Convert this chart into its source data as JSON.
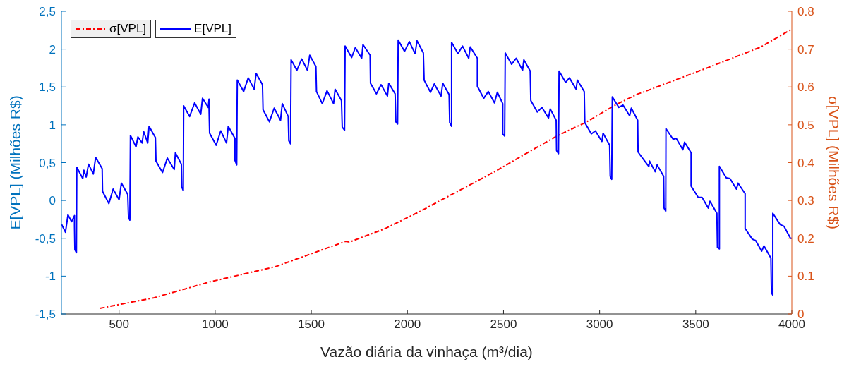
{
  "chart_data": {
    "type": "line",
    "xlabel": "Vazão diária da vinhaça (m³/dia)",
    "ylabel": "E[VPL] (Milhões R$)",
    "y2label": "σ[VPL] (Milhões R$)",
    "xlim": [
      200,
      4000
    ],
    "xticks": [
      500,
      1000,
      1500,
      2000,
      2500,
      3000,
      3500,
      4000
    ],
    "ylim": [
      -1.5,
      2.5
    ],
    "yticks": [
      {
        "value": -1.5,
        "label": "-1,5"
      },
      -1,
      {
        "value": -0.5,
        "label": "-0,5"
      },
      0,
      {
        "value": 0.5,
        "label": "0,5"
      },
      1,
      {
        "value": 1.5,
        "label": "1,5"
      },
      2,
      {
        "value": 2.5,
        "label": "2,5"
      }
    ],
    "y2lim": [
      0,
      0.8
    ],
    "y2ticks": [
      0,
      0.1,
      0.2,
      0.3,
      0.4,
      0.5,
      0.6,
      0.7,
      0.8
    ],
    "legend": "top left",
    "series": [
      {
        "name": "σ[VPL]",
        "color": "#ff0000",
        "axis": "y2",
        "line_style": "dashed",
        "x": [
          400,
          683,
          946,
          965,
          1313,
          1679,
          1698,
          1881,
          2065,
          2468,
          2596,
          2780,
          2926,
          3084,
          3201,
          3220,
          3568,
          3836,
          3997
        ],
        "values": [
          0.015,
          0.043,
          0.081,
          0.084,
          0.125,
          0.192,
          0.19,
          0.225,
          0.271,
          0.38,
          0.418,
          0.471,
          0.506,
          0.553,
          0.582,
          0.585,
          0.652,
          0.705,
          0.752
        ]
      },
      {
        "name": "E[VPL]",
        "color": "#0000ff",
        "line_style": "solid",
        "x": [
          200,
          221,
          234,
          253,
          268,
          268,
          270,
          278,
          280,
          311,
          317,
          329,
          341,
          366,
          378,
          412,
          414,
          447,
          469,
          500,
          512,
          545,
          549,
          556,
          559,
          588,
          598,
          620,
          628,
          649,
          656,
          689,
          692,
          726,
          751,
          787,
          793,
          824,
          826,
          834,
          836,
          867,
          893,
          925,
          934,
          964,
          968,
          968,
          971,
          1005,
          1029,
          1059,
          1068,
          1103,
          1103,
          1112,
          1115,
          1148,
          1172,
          1203,
          1213,
          1246,
          1249,
          1282,
          1307,
          1340,
          1349,
          1380,
          1383,
          1392,
          1395,
          1425,
          1450,
          1480,
          1492,
          1524,
          1527,
          1557,
          1582,
          1616,
          1624,
          1657,
          1661,
          1673,
          1676,
          1710,
          1729,
          1762,
          1769,
          1806,
          1808,
          1839,
          1863,
          1896,
          1903,
          1936,
          1940,
          1949,
          1952,
          1985,
          2010,
          2040,
          2050,
          2083,
          2087,
          2120,
          2140,
          2175,
          2184,
          2217,
          2220,
          2230,
          2230,
          2263,
          2287,
          2319,
          2327,
          2364,
          2364,
          2397,
          2421,
          2453,
          2468,
          2496,
          2496,
          2506,
          2509,
          2542,
          2566,
          2599,
          2606,
          2639,
          2642,
          2676,
          2700,
          2734,
          2743,
          2774,
          2776,
          2786,
          2789,
          2823,
          2843,
          2878,
          2884,
          2920,
          2923,
          2957,
          2978,
          3012,
          3018,
          3052,
          3055,
          3063,
          3066,
          3100,
          3122,
          3156,
          3165,
          3198,
          3200,
          3232,
          3256,
          3260,
          3289,
          3299,
          3333,
          3335,
          3344,
          3345,
          3382,
          3399,
          3433,
          3442,
          3476,
          3476,
          3513,
          3533,
          3565,
          3574,
          3610,
          3613,
          3623,
          3623,
          3659,
          3678,
          3712,
          3720,
          3757,
          3757,
          3794,
          3812,
          3843,
          3855,
          3891,
          3894,
          3901,
          3901,
          3940,
          3959,
          3993,
          4000
        ],
        "values": [
          -0.31,
          -0.42,
          -0.19,
          -0.28,
          -0.2,
          -0.34,
          -0.65,
          -0.69,
          0.44,
          0.29,
          0.4,
          0.31,
          0.48,
          0.35,
          0.57,
          0.42,
          0.12,
          -0.04,
          0.15,
          0.01,
          0.23,
          0.08,
          -0.22,
          -0.26,
          0.86,
          0.71,
          0.84,
          0.76,
          0.91,
          0.76,
          0.98,
          0.83,
          0.52,
          0.37,
          0.56,
          0.41,
          0.63,
          0.48,
          0.18,
          0.13,
          1.25,
          1.11,
          1.29,
          1.14,
          1.35,
          1.23,
          1.34,
          1.22,
          0.89,
          0.73,
          0.92,
          0.76,
          0.98,
          0.82,
          0.53,
          0.47,
          1.59,
          1.44,
          1.62,
          1.47,
          1.68,
          1.53,
          1.2,
          1.04,
          1.22,
          1.06,
          1.28,
          1.11,
          0.79,
          0.75,
          1.86,
          1.72,
          1.87,
          1.72,
          1.92,
          1.77,
          1.44,
          1.28,
          1.45,
          1.28,
          1.47,
          1.32,
          0.97,
          0.93,
          2.04,
          1.89,
          2.02,
          1.88,
          2.06,
          1.92,
          1.55,
          1.41,
          1.53,
          1.38,
          1.55,
          1.41,
          1.04,
          1.01,
          2.12,
          1.97,
          2.1,
          1.94,
          2.11,
          1.95,
          1.59,
          1.43,
          1.54,
          1.38,
          1.55,
          1.4,
          1.03,
          0.98,
          2.09,
          1.94,
          2.04,
          1.88,
          2.03,
          1.88,
          1.51,
          1.35,
          1.44,
          1.29,
          1.43,
          1.28,
          0.88,
          0.85,
          1.95,
          1.8,
          1.88,
          1.72,
          1.86,
          1.71,
          1.32,
          1.17,
          1.23,
          1.09,
          1.21,
          1.06,
          0.66,
          0.62,
          1.71,
          1.56,
          1.62,
          1.47,
          1.59,
          1.44,
          1.03,
          0.88,
          0.92,
          0.78,
          0.89,
          0.73,
          0.32,
          0.28,
          1.37,
          1.23,
          1.26,
          1.12,
          1.22,
          1.06,
          0.64,
          0.53,
          0.45,
          0.52,
          0.38,
          0.47,
          0.32,
          -0.1,
          -0.14,
          0.95,
          0.81,
          0.82,
          0.67,
          0.77,
          0.63,
          0.19,
          0.04,
          0.04,
          -0.1,
          -0.01,
          -0.17,
          -0.62,
          -0.64,
          0.45,
          0.3,
          0.29,
          0.15,
          0.23,
          0.09,
          -0.37,
          -0.51,
          -0.53,
          -0.67,
          -0.6,
          -0.76,
          -1.22,
          -1.25,
          -0.17,
          -0.32,
          -0.34,
          -0.5,
          -0.5
        ]
      }
    ]
  }
}
